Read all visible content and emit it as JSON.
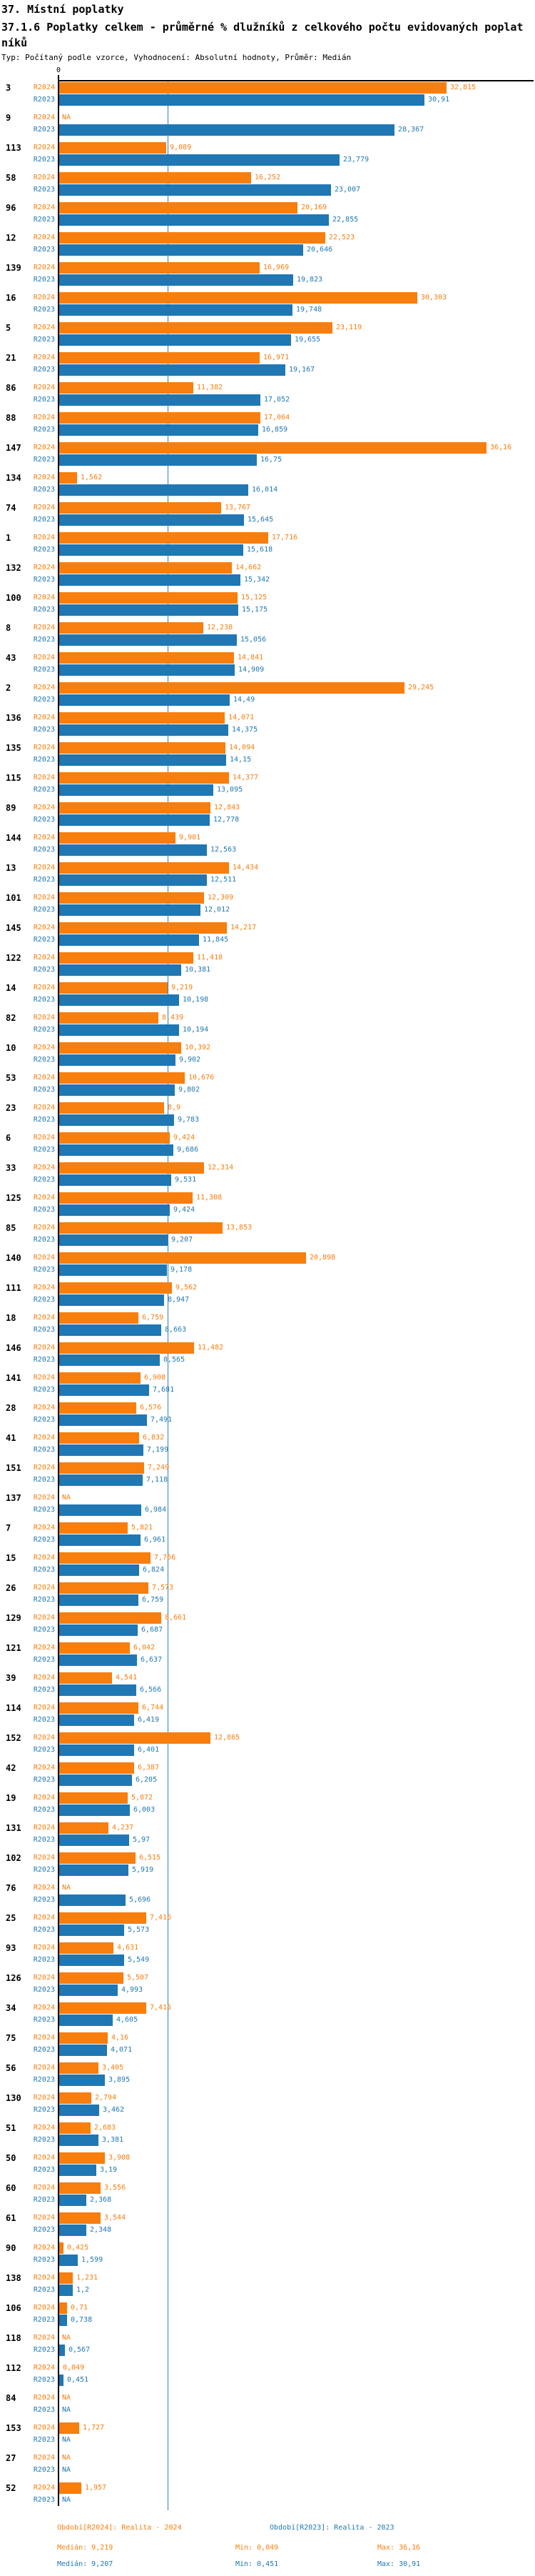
{
  "header": {
    "section_title": "37. Místní poplatky",
    "chart_title": "37.1.6 Poplatky celkem - průměrné % dlužníků z celkového počtu evidovaných poplatníků",
    "meta": "Typ: Počítaný podle vzorce, Vyhodnocení: Absolutní hodnoty, Průměr: Medián"
  },
  "chart_data": {
    "type": "bar",
    "orientation": "horizontal",
    "title": "37.1.6 Poplatky celkem - průměrné % dlužníků z celkového počtu evidovaných poplatníků",
    "xlim": [
      0,
      40
    ],
    "zero_tick_label": "0",
    "grid": false,
    "value_format": "czech-decimal-comma",
    "na_label": "NA",
    "categories": [
      "3",
      "9",
      "113",
      "58",
      "96",
      "12",
      "139",
      "16",
      "5",
      "21",
      "86",
      "88",
      "147",
      "134",
      "74",
      "1",
      "132",
      "100",
      "8",
      "43",
      "2",
      "136",
      "135",
      "115",
      "89",
      "144",
      "13",
      "101",
      "145",
      "122",
      "14",
      "82",
      "10",
      "53",
      "23",
      "6",
      "33",
      "125",
      "85",
      "140",
      "111",
      "18",
      "146",
      "141",
      "28",
      "41",
      "151",
      "137",
      "7",
      "15",
      "26",
      "129",
      "121",
      "39",
      "114",
      "152",
      "42",
      "19",
      "131",
      "102",
      "76",
      "25",
      "93",
      "126",
      "34",
      "75",
      "56",
      "130",
      "51",
      "50",
      "60",
      "61",
      "90",
      "138",
      "106",
      "118",
      "112",
      "84",
      "153",
      "27",
      "52"
    ],
    "series": [
      {
        "name": "R2024",
        "color": "#f87e0e",
        "values": [
          "32,815",
          "NA",
          "9,089",
          "16,252",
          "20,169",
          "22,523",
          "16,969",
          "30,303",
          "23,119",
          "16,971",
          "11,382",
          "17,064",
          "36,16",
          "1,562",
          "13,767",
          "17,716",
          "14,662",
          "15,125",
          "12,238",
          "14,841",
          "29,245",
          "14,071",
          "14,094",
          "14,377",
          "12,843",
          "9,901",
          "14,434",
          "12,309",
          "14,217",
          "11,418",
          "9,219",
          "8,439",
          "10,392",
          "10,676",
          "8,9",
          "9,424",
          "12,314",
          "11,308",
          "13,853",
          "20,898",
          "9,562",
          "6,759",
          "11,482",
          "6,908",
          "6,576",
          "6,832",
          "7,249",
          "NA",
          "5,821",
          "7,766",
          "7,573",
          "8,661",
          "6,042",
          "4,541",
          "6,744",
          "12,865",
          "6,387",
          "5,872",
          "4,237",
          "6,515",
          "NA",
          "7,416",
          "4,631",
          "5,507",
          "7,415",
          "4,16",
          "3,405",
          "2,794",
          "2,683",
          "3,908",
          "3,556",
          "3,544",
          "0,425",
          "1,231",
          "0,71",
          "NA",
          "0,049",
          "NA",
          "1,727",
          "NA",
          "1,957"
        ]
      },
      {
        "name": "R2023",
        "color": "#1f77b4",
        "values": [
          "30,91",
          "28,367",
          "23,779",
          "23,007",
          "22,855",
          "20,646",
          "19,823",
          "19,748",
          "19,655",
          "19,167",
          "17,052",
          "16,859",
          "16,75",
          "16,014",
          "15,645",
          "15,618",
          "15,342",
          "15,175",
          "15,056",
          "14,909",
          "14,49",
          "14,375",
          "14,15",
          "13,095",
          "12,778",
          "12,563",
          "12,511",
          "12,012",
          "11,845",
          "10,381",
          "10,198",
          "10,194",
          "9,902",
          "9,802",
          "9,783",
          "9,686",
          "9,531",
          "9,424",
          "9,207",
          "9,178",
          "8,947",
          "8,663",
          "8,565",
          "7,681",
          "7,491",
          "7,199",
          "7,118",
          "6,984",
          "6,961",
          "6,824",
          "6,759",
          "6,687",
          "6,637",
          "6,566",
          "6,419",
          "6,401",
          "6,205",
          "6,003",
          "5,97",
          "5,919",
          "5,696",
          "5,573",
          "5,549",
          "4,993",
          "4,605",
          "4,071",
          "3,895",
          "3,462",
          "3,381",
          "3,19",
          "2,368",
          "2,348",
          "1,599",
          "1,2",
          "0,738",
          "0,567",
          "0,451",
          "NA",
          "NA",
          "NA",
          "NA"
        ]
      }
    ],
    "median_lines": [
      {
        "series": "R2024",
        "value": 9.219
      },
      {
        "series": "R2023",
        "value": 9.207
      }
    ]
  },
  "footer": {
    "period_2024": "Období[R2024]: Realita - 2024",
    "period_2023": "Období[R2023]: Realita - 2023",
    "median_2024": "Medián: 9,219",
    "min_2024": "Min: 0,049",
    "max_2024": "Max: 36,16",
    "median_2023": "Medián: 9,207",
    "min_2023": "Min: 0,451",
    "max_2023": "Max: 30,91"
  }
}
